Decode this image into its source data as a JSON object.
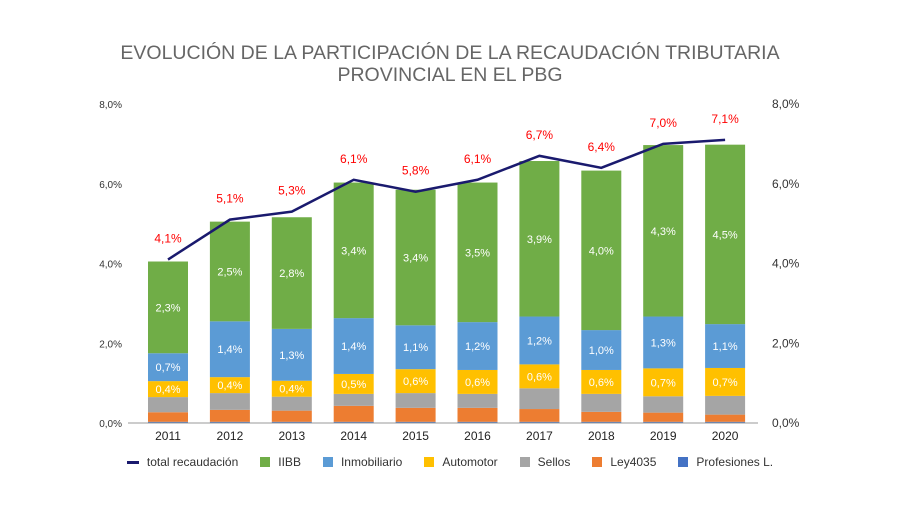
{
  "chart_data": {
    "type": "bar",
    "stacked": true,
    "title": [
      "EVOLUCIÓN DE LA PARTICIPACIÓN DE LA RECAUDACIÓN TRIBUTARIA",
      "PROVINCIAL EN EL PBG"
    ],
    "categories": [
      "2011",
      "2012",
      "2013",
      "2014",
      "2015",
      "2016",
      "2017",
      "2018",
      "2019",
      "2020"
    ],
    "ylim": [
      0,
      8
    ],
    "y_ticks": [
      "0,0%",
      "2,0%",
      "4,0%",
      "6,0%",
      "8,0%"
    ],
    "grid": false,
    "legend_position": "bottom",
    "series": [
      {
        "name": "Profesiones L.",
        "color": "#4472c4",
        "values": [
          0.03,
          0.03,
          0.03,
          0.03,
          0.03,
          0.03,
          0.03,
          0.03,
          0.03,
          0.03
        ],
        "labels": null
      },
      {
        "name": "Ley4035",
        "color": "#ed7d31",
        "values": [
          0.24,
          0.3,
          0.28,
          0.4,
          0.35,
          0.35,
          0.32,
          0.25,
          0.23,
          0.18
        ],
        "labels": null
      },
      {
        "name": "Sellos",
        "color": "#a5a5a5",
        "values": [
          0.38,
          0.42,
          0.35,
          0.3,
          0.37,
          0.35,
          0.52,
          0.45,
          0.41,
          0.47
        ],
        "labels": null
      },
      {
        "name": "Automotor",
        "color": "#ffc000",
        "values": [
          0.4,
          0.4,
          0.4,
          0.5,
          0.6,
          0.6,
          0.6,
          0.6,
          0.7,
          0.7
        ],
        "labels": [
          "0,4%",
          "0,4%",
          "0,4%",
          "0,5%",
          "0,6%",
          "0,6%",
          "0,6%",
          "0,6%",
          "0,7%",
          "0,7%"
        ]
      },
      {
        "name": "Inmobiliario",
        "color": "#5b9bd5",
        "values": [
          0.7,
          1.4,
          1.3,
          1.4,
          1.1,
          1.2,
          1.2,
          1.0,
          1.3,
          1.1
        ],
        "labels": [
          "0,7%",
          "1,4%",
          "1,3%",
          "1,4%",
          "1,1%",
          "1,2%",
          "1,2%",
          "1,0%",
          "1,3%",
          "1,1%"
        ]
      },
      {
        "name": "IIBB",
        "color": "#70ad47",
        "values": [
          2.3,
          2.5,
          2.8,
          3.4,
          3.4,
          3.5,
          3.9,
          4.0,
          4.3,
          4.5
        ],
        "labels": [
          "2,3%",
          "2,5%",
          "2,8%",
          "3,4%",
          "3,4%",
          "3,5%",
          "3,9%",
          "4,0%",
          "4,3%",
          "4,5%"
        ]
      }
    ],
    "line": {
      "name": "total recaudación",
      "color": "#1a1a6e",
      "values": [
        4.1,
        5.1,
        5.3,
        6.1,
        5.8,
        6.1,
        6.7,
        6.4,
        7.0,
        7.1
      ],
      "labels": [
        "4,1%",
        "5,1%",
        "5,3%",
        "6,1%",
        "5,8%",
        "6,1%",
        "6,7%",
        "6,4%",
        "7,0%",
        "7,1%"
      ],
      "label_color": "#ff0000"
    },
    "legend": [
      "total recaudación",
      "IIBB",
      "Inmobiliario",
      "Automotor",
      "Sellos",
      "Ley4035",
      "Profesiones L."
    ]
  }
}
